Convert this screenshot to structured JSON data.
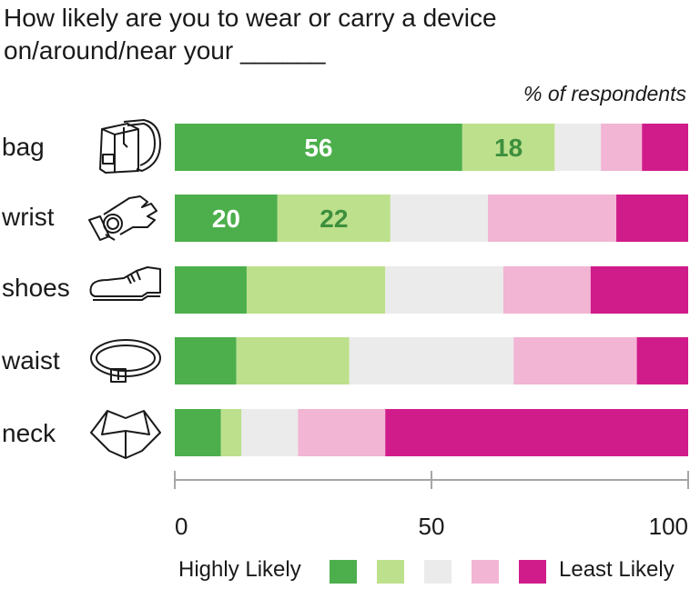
{
  "title_line1": "How likely are you to wear or carry a device",
  "title_line2": "on/around/near your ______",
  "unit_label": "% of respondents",
  "colors": {
    "level1": "#4caf4c",
    "level2": "#bde08c",
    "level3": "#ebebeb",
    "level4": "#f2b5d4",
    "level5": "#d01c8b",
    "label_on_dark": "#ffffff",
    "label_on_light": "#3d8f3d",
    "axis": "#a6a6a6"
  },
  "legend": {
    "left_label": "Highly Likely",
    "right_label": "Least Likely"
  },
  "chart_data": {
    "type": "bar",
    "orientation": "horizontal",
    "stacked": true,
    "categories": [
      "bag",
      "wrist",
      "shoes",
      "waist",
      "neck"
    ],
    "icons": [
      "bag-icon",
      "wristwatch-icon",
      "shoe-icon",
      "belt-icon",
      "shirt-collar-icon"
    ],
    "series": [
      {
        "values": [
          56,
          20,
          14,
          12,
          9
        ]
      },
      {
        "values": [
          18,
          22,
          27,
          22,
          4
        ]
      },
      {
        "values": [
          9,
          19,
          23,
          32,
          11
        ]
      },
      {
        "values": [
          8,
          25,
          17,
          24,
          17
        ]
      },
      {
        "values": [
          9,
          14,
          19,
          10,
          59
        ]
      }
    ],
    "data_labels": [
      {
        "category": "bag",
        "series": 0,
        "text": "56"
      },
      {
        "category": "bag",
        "series": 1,
        "text": "18"
      },
      {
        "category": "wrist",
        "series": 0,
        "text": "20"
      },
      {
        "category": "wrist",
        "series": 1,
        "text": "22"
      }
    ],
    "xlim": [
      0,
      100
    ],
    "x_ticks": [
      0,
      50,
      100
    ],
    "x_tick_labels": [
      "0",
      "50",
      "100"
    ],
    "grid": false,
    "legend_position": "bottom"
  }
}
